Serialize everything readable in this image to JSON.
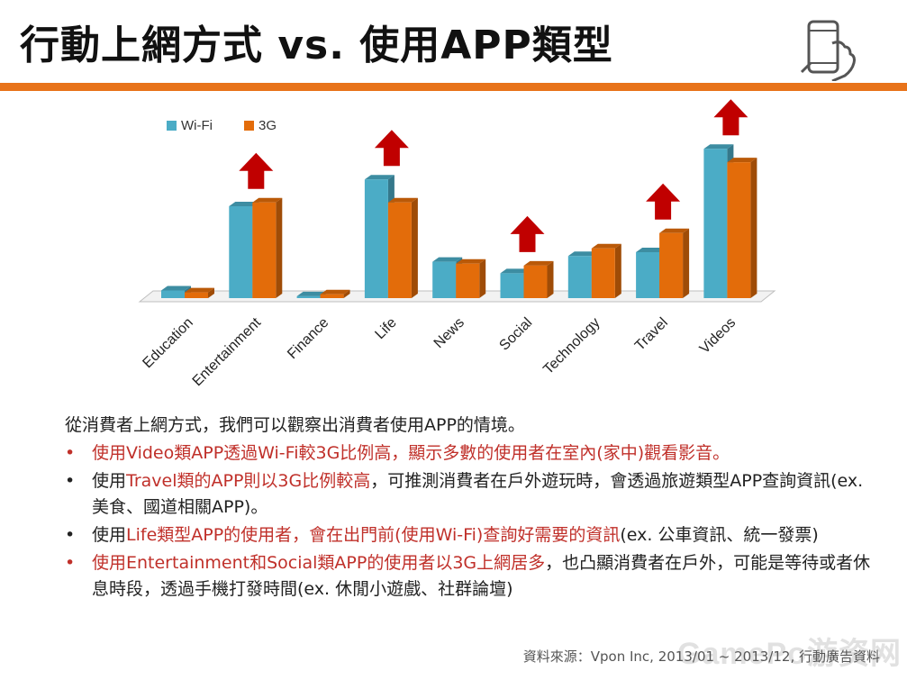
{
  "title": "行動上網方式 vs. 使用APP類型",
  "icon": "phone-in-hand-icon",
  "chart_data": {
    "type": "bar",
    "categories": [
      "Education",
      "Entertainment",
      "Finance",
      "Life",
      "News",
      "Social",
      "Technology",
      "Travel",
      "Videos"
    ],
    "series": [
      {
        "name": "Wi-Fi",
        "color": "#4BACC6",
        "values": [
          4,
          48,
          1,
          62,
          19,
          13,
          22,
          24,
          78
        ]
      },
      {
        "name": "3G",
        "color": "#E36C0A",
        "values": [
          3,
          50,
          2,
          50,
          18,
          17,
          26,
          34,
          71
        ]
      }
    ],
    "ylim": [
      0,
      80
    ],
    "legend": "top-left",
    "grid": false,
    "arrow_categories": [
      "Entertainment",
      "Life",
      "Social",
      "Travel",
      "Videos"
    ],
    "arrow_color": "#C00000"
  },
  "text": {
    "intro": "從消費者上網方式，我們可以觀察出消費者使用APP的情境。",
    "bullet_symbol": "•",
    "b1": "使用Video類APP透過Wi-Fi較3G比例高，顯示多數的使用者在室內(家中)觀看影音。",
    "b2_pre": "使用",
    "b2_hl": "Travel類的APP則以3G比例較高",
    "b2_post": "，可推測消費者在戶外遊玩時，會透過旅遊類型APP查詢資訊(ex. 美食、國道相關APP)。",
    "b3_pre": "使用",
    "b3_hl": "Life類型APP的使用者，會在出門前(使用Wi-Fi)查詢好需要的資訊",
    "b3_post": "(ex. 公車資訊、統一發票)",
    "b4_hl": "使用Entertainment和Social類APP的使用者以3G上網居多",
    "b4_post": "，也凸顯消費者在戶外，可能是等待或者休息時段，透過手機打發時間(ex. 休閒小遊戲、社群論壇)"
  },
  "source": "資料來源：Vpon Inc, 2013/01 ~ 2013/12, 行動廣告資料",
  "watermark": "GamePo游资网"
}
